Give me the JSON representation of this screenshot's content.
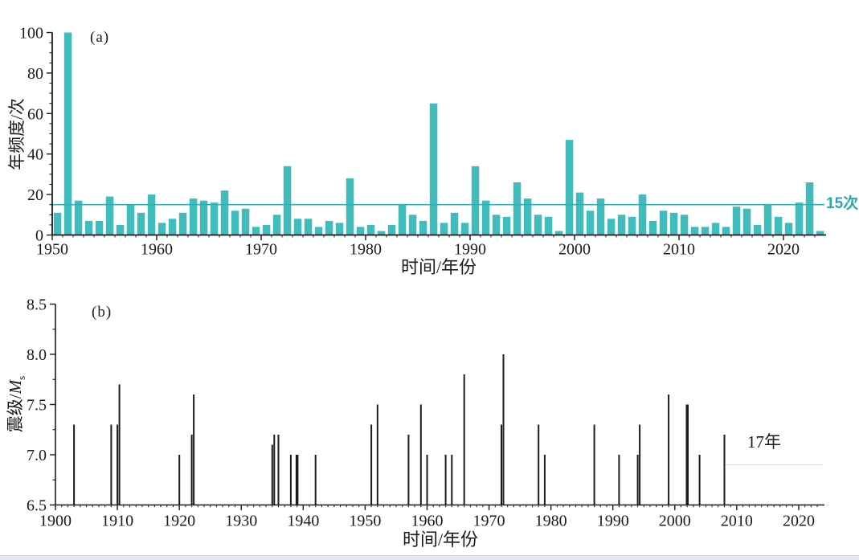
{
  "page": {
    "background": "#ffffff",
    "footer_strip_color": "#dfe8f3",
    "axis_color": "#1a1a1a"
  },
  "chart_data": [
    {
      "type": "bar",
      "panel_label": "(a)",
      "xlabel": "时间/年份",
      "ylabel": "年频度/次",
      "ylim": [
        0,
        100
      ],
      "x_range": [
        1950,
        2024
      ],
      "yticks": [
        0,
        20,
        40,
        60,
        80,
        100
      ],
      "xticks": [
        1950,
        1960,
        1970,
        1980,
        1990,
        2000,
        2010,
        2020
      ],
      "grid": false,
      "bar_color": "#41bcbd",
      "mean_line": {
        "value": 15,
        "label": "15次",
        "color": "#2fb0b4",
        "label_color": "#2ba6ae"
      },
      "bars": [
        [
          1950,
          11
        ],
        [
          1951,
          100
        ],
        [
          1952,
          17
        ],
        [
          1953,
          7
        ],
        [
          1954,
          7
        ],
        [
          1955,
          19
        ],
        [
          1956,
          5
        ],
        [
          1957,
          15
        ],
        [
          1958,
          11
        ],
        [
          1959,
          20
        ],
        [
          1960,
          6
        ],
        [
          1961,
          8
        ],
        [
          1962,
          11
        ],
        [
          1963,
          18
        ],
        [
          1964,
          17
        ],
        [
          1965,
          16
        ],
        [
          1966,
          22
        ],
        [
          1967,
          12
        ],
        [
          1968,
          13
        ],
        [
          1969,
          4
        ],
        [
          1970,
          5
        ],
        [
          1971,
          10
        ],
        [
          1972,
          34
        ],
        [
          1973,
          8
        ],
        [
          1974,
          8
        ],
        [
          1975,
          4
        ],
        [
          1976,
          7
        ],
        [
          1977,
          6
        ],
        [
          1978,
          28
        ],
        [
          1979,
          4
        ],
        [
          1980,
          5
        ],
        [
          1981,
          2
        ],
        [
          1982,
          5
        ],
        [
          1983,
          15
        ],
        [
          1984,
          10
        ],
        [
          1985,
          7
        ],
        [
          1986,
          65
        ],
        [
          1987,
          6
        ],
        [
          1988,
          11
        ],
        [
          1989,
          6
        ],
        [
          1990,
          34
        ],
        [
          1991,
          17
        ],
        [
          1992,
          10
        ],
        [
          1993,
          9
        ],
        [
          1994,
          26
        ],
        [
          1995,
          18
        ],
        [
          1996,
          10
        ],
        [
          1997,
          9
        ],
        [
          1998,
          2
        ],
        [
          1999,
          47
        ],
        [
          2000,
          21
        ],
        [
          2001,
          12
        ],
        [
          2002,
          18
        ],
        [
          2003,
          8
        ],
        [
          2004,
          10
        ],
        [
          2005,
          9
        ],
        [
          2006,
          20
        ],
        [
          2007,
          7
        ],
        [
          2008,
          12
        ],
        [
          2009,
          11
        ],
        [
          2010,
          10
        ],
        [
          2011,
          4
        ],
        [
          2012,
          4
        ],
        [
          2013,
          6
        ],
        [
          2014,
          4
        ],
        [
          2015,
          14
        ],
        [
          2016,
          13
        ],
        [
          2017,
          5
        ],
        [
          2018,
          15
        ],
        [
          2019,
          9
        ],
        [
          2020,
          6
        ],
        [
          2021,
          16
        ],
        [
          2022,
          26
        ],
        [
          2023,
          2
        ]
      ]
    },
    {
      "type": "stem",
      "panel_label": "(b)",
      "xlabel": "时间/年份",
      "ylabel_prefix": "震级/",
      "ylabel_symbol": "M",
      "ylabel_subscript": "s",
      "ylim": [
        6.5,
        8.5
      ],
      "x_range": [
        1900,
        2024
      ],
      "yticks": [
        "6.5",
        "7.0",
        "7.5",
        "8.0",
        "8.5"
      ],
      "xticks": [
        1900,
        1910,
        1920,
        1930,
        1940,
        1950,
        1960,
        1970,
        1980,
        1990,
        2000,
        2010,
        2020
      ],
      "grid": false,
      "stem_color": "#1c1c1c",
      "events": [
        [
          1903,
          7.3
        ],
        [
          1909,
          7.3
        ],
        [
          1910,
          7.3
        ],
        [
          1910,
          7.7
        ],
        [
          1920,
          7.0
        ],
        [
          1922,
          7.2
        ],
        [
          1922,
          7.6
        ],
        [
          1935,
          7.1
        ],
        [
          1935,
          7.2
        ],
        [
          1936,
          7.2
        ],
        [
          1938,
          7.0
        ],
        [
          1939,
          7.0,
          3.5
        ],
        [
          1942,
          7.0
        ],
        [
          1951,
          7.3
        ],
        [
          1952,
          7.5
        ],
        [
          1957,
          7.2
        ],
        [
          1959,
          7.5
        ],
        [
          1960,
          7.0
        ],
        [
          1963,
          7.0
        ],
        [
          1964,
          7.0
        ],
        [
          1966,
          7.8
        ],
        [
          1972,
          7.3
        ],
        [
          1972,
          8.0
        ],
        [
          1978,
          7.3
        ],
        [
          1979,
          7.0
        ],
        [
          1987,
          7.3
        ],
        [
          1991,
          7.0
        ],
        [
          1994,
          7.0
        ],
        [
          1994,
          7.3
        ],
        [
          1999,
          7.6
        ],
        [
          2002,
          7.5,
          3.5
        ],
        [
          2004,
          7.0
        ],
        [
          2008,
          7.2
        ]
      ],
      "gap_annotation": {
        "label": "17年",
        "line_value": 6.9,
        "from_year": 2008,
        "line_color": "#e8dcdc",
        "label_color": "#222222"
      }
    }
  ]
}
